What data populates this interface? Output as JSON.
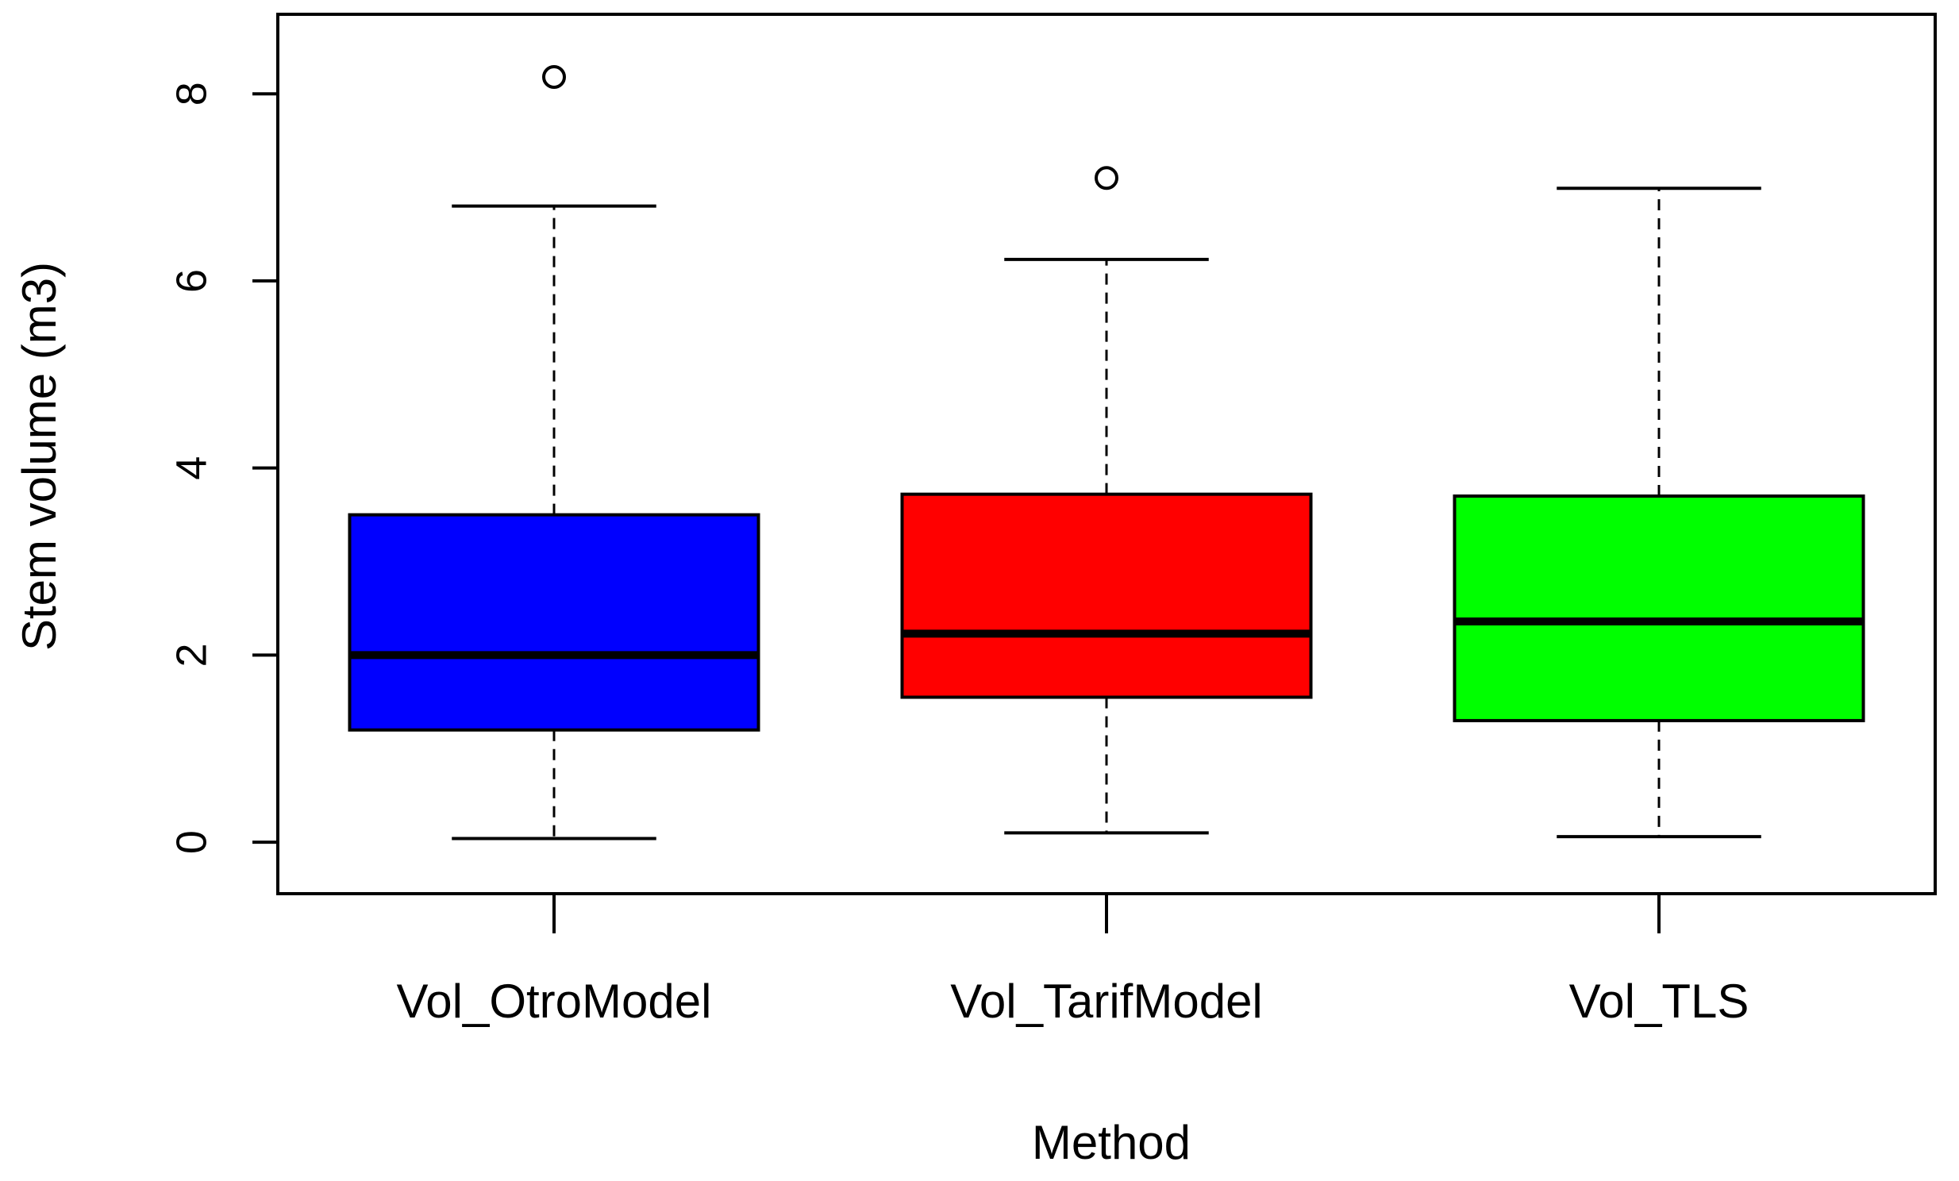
{
  "chart_data": {
    "type": "boxplot",
    "title": "",
    "xlabel": "Method",
    "ylabel": "Stem volume (m3)",
    "ylim": [
      -0.55,
      8.85
    ],
    "yticks": [
      0,
      2,
      4,
      6,
      8
    ],
    "yticks_text": [
      "0",
      "2",
      "4",
      "6",
      "8"
    ],
    "categories": [
      "Vol_OtroModel",
      "Vol_TarifModel",
      "Vol_TLS"
    ],
    "boxes": [
      {
        "name": "Vol_OtroModel",
        "color": "#0000ff",
        "whisker_low": 0.04,
        "q1": 1.2,
        "median": 2.0,
        "q3": 3.5,
        "whisker_high": 6.8,
        "outliers": [
          8.18
        ]
      },
      {
        "name": "Vol_TarifModel",
        "color": "#ff0000",
        "whisker_low": 0.1,
        "q1": 1.55,
        "median": 2.23,
        "q3": 3.72,
        "whisker_high": 6.23,
        "outliers": [
          7.1
        ]
      },
      {
        "name": "Vol_TLS",
        "color": "#00ff00",
        "whisker_low": 0.06,
        "q1": 1.3,
        "median": 2.36,
        "q3": 3.7,
        "whisker_high": 6.99,
        "outliers": []
      }
    ]
  }
}
